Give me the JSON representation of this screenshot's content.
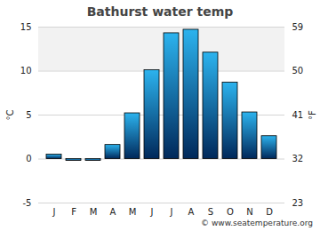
{
  "chart_data": {
    "type": "bar",
    "title": "Bathurst water temp",
    "caption": "© www.seatemperature.org",
    "categories": [
      "J",
      "F",
      "M",
      "A",
      "M",
      "J",
      "J",
      "A",
      "S",
      "O",
      "N",
      "D"
    ],
    "values": [
      0.5,
      -0.2,
      -0.2,
      1.6,
      5.2,
      10.1,
      14.3,
      14.7,
      12.1,
      8.7,
      5.3,
      2.6
    ],
    "color": "#2cb3ee",
    "ylabel": "°C",
    "ylim": [
      -5,
      15
    ],
    "yticks": [
      -5,
      0,
      5,
      10,
      15
    ],
    "y2label": "°F",
    "y2lim": [
      23,
      59
    ],
    "y2ticks": [
      23,
      32,
      41,
      50,
      59
    ],
    "grid": true
  }
}
